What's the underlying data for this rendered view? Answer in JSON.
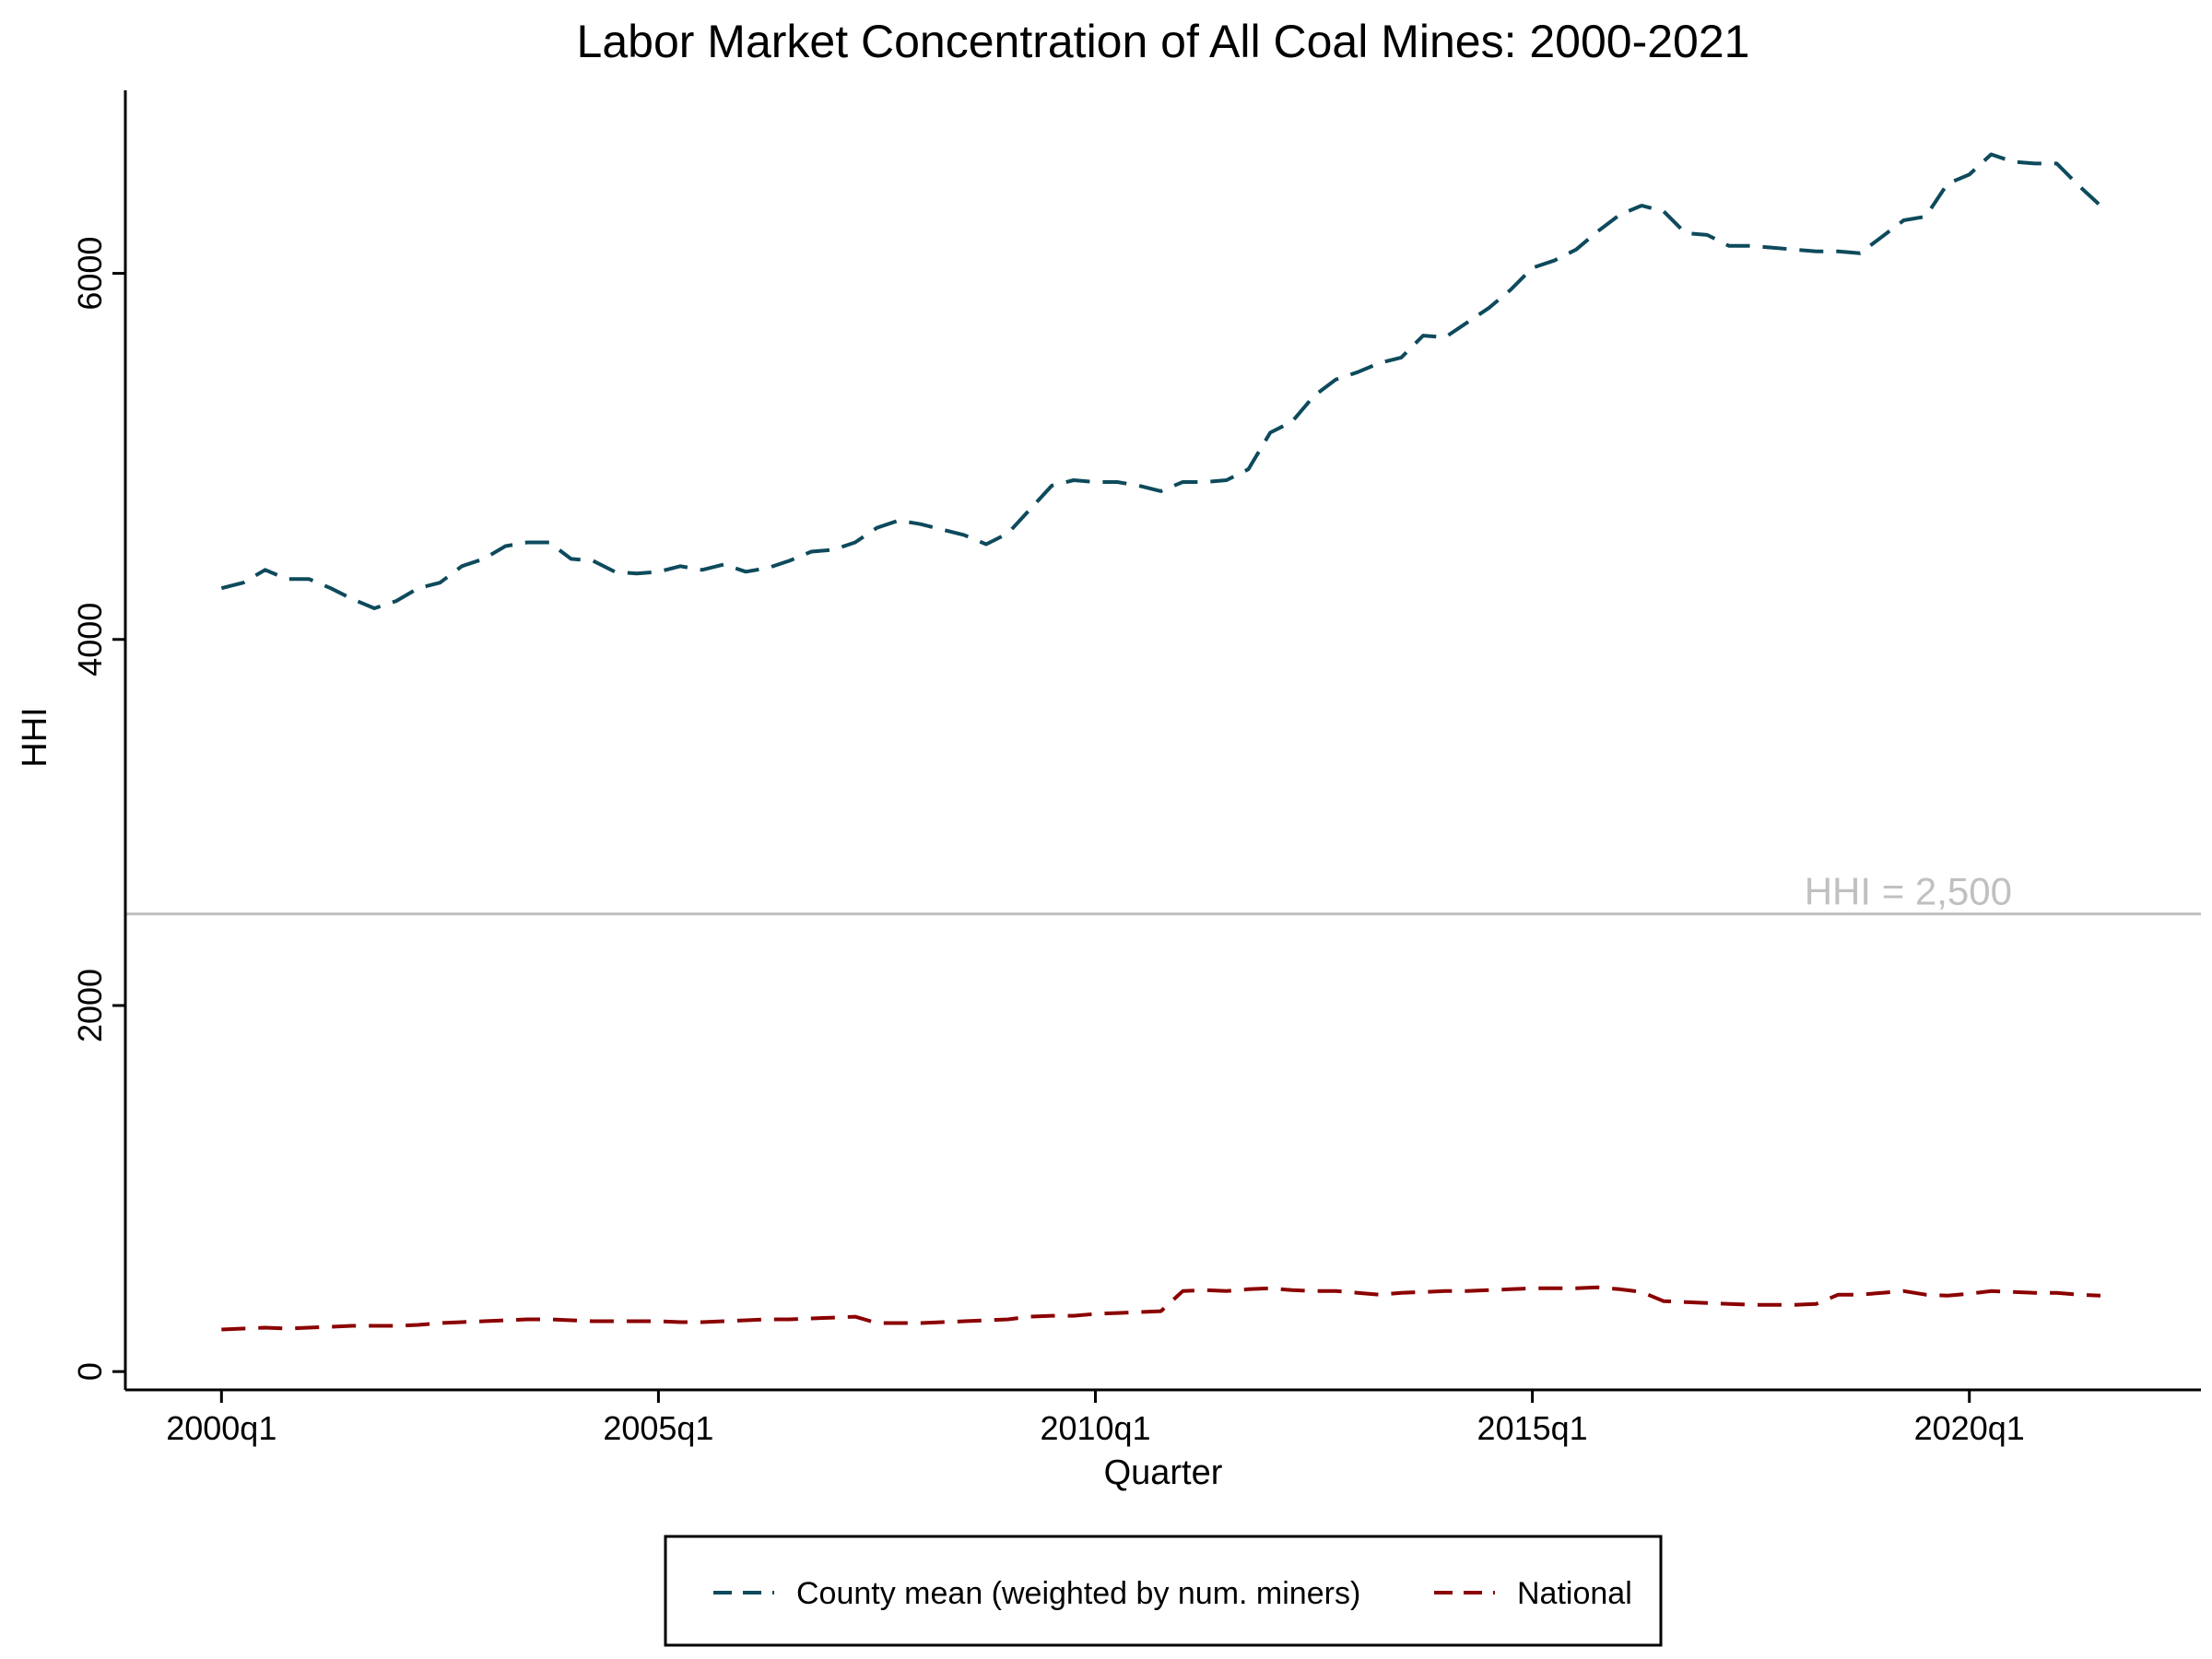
{
  "chart_data": {
    "type": "line",
    "title": "Labor Market Concentration of All Coal Mines: 2000-2021",
    "xlabel": "Quarter",
    "ylabel": "HHI",
    "x_range": [
      2000,
      2021.75
    ],
    "x_ticks": [
      {
        "value": 2000,
        "label": "2000q1"
      },
      {
        "value": 2005,
        "label": "2005q1"
      },
      {
        "value": 2010,
        "label": "2010q1"
      },
      {
        "value": 2015,
        "label": "2015q1"
      },
      {
        "value": 2020,
        "label": "2020q1"
      }
    ],
    "ylim": [
      -100,
      7000
    ],
    "y_ticks": [
      {
        "value": 0,
        "label": "0"
      },
      {
        "value": 2000,
        "label": "2000"
      },
      {
        "value": 4000,
        "label": "4000"
      },
      {
        "value": 6000,
        "label": "6000"
      }
    ],
    "grid": false,
    "legend_position": "bottom",
    "reference_line": {
      "value": 2500,
      "label": "HHI = 2,500",
      "color": "#c0c0c0"
    },
    "series": [
      {
        "name": "County mean (weighted by num. miners)",
        "color": "#0d4a5c",
        "dash": "dashed",
        "points": [
          [
            2000.0,
            4280
          ],
          [
            2000.25,
            4310
          ],
          [
            2000.5,
            4380
          ],
          [
            2000.75,
            4330
          ],
          [
            2001.0,
            4330
          ],
          [
            2001.25,
            4280
          ],
          [
            2001.5,
            4220
          ],
          [
            2001.75,
            4170
          ],
          [
            2002.0,
            4210
          ],
          [
            2002.25,
            4280
          ],
          [
            2002.5,
            4310
          ],
          [
            2002.75,
            4400
          ],
          [
            2003.0,
            4440
          ],
          [
            2003.25,
            4510
          ],
          [
            2003.5,
            4530
          ],
          [
            2003.75,
            4530
          ],
          [
            2004.0,
            4440
          ],
          [
            2004.25,
            4430
          ],
          [
            2004.5,
            4370
          ],
          [
            2004.75,
            4360
          ],
          [
            2005.0,
            4370
          ],
          [
            2005.25,
            4400
          ],
          [
            2005.5,
            4380
          ],
          [
            2005.75,
            4410
          ],
          [
            2006.0,
            4370
          ],
          [
            2006.25,
            4390
          ],
          [
            2006.5,
            4430
          ],
          [
            2006.75,
            4480
          ],
          [
            2007.0,
            4490
          ],
          [
            2007.25,
            4530
          ],
          [
            2007.5,
            4610
          ],
          [
            2007.75,
            4650
          ],
          [
            2008.0,
            4630
          ],
          [
            2008.25,
            4600
          ],
          [
            2008.5,
            4570
          ],
          [
            2008.75,
            4520
          ],
          [
            2009.0,
            4580
          ],
          [
            2009.25,
            4710
          ],
          [
            2009.5,
            4840
          ],
          [
            2009.75,
            4870
          ],
          [
            2010.0,
            4860
          ],
          [
            2010.25,
            4860
          ],
          [
            2010.5,
            4840
          ],
          [
            2010.75,
            4810
          ],
          [
            2011.0,
            4860
          ],
          [
            2011.25,
            4860
          ],
          [
            2011.5,
            4870
          ],
          [
            2011.75,
            4930
          ],
          [
            2012.0,
            5130
          ],
          [
            2012.25,
            5190
          ],
          [
            2012.5,
            5330
          ],
          [
            2012.75,
            5420
          ],
          [
            2013.0,
            5460
          ],
          [
            2013.25,
            5510
          ],
          [
            2013.5,
            5540
          ],
          [
            2013.75,
            5660
          ],
          [
            2014.0,
            5650
          ],
          [
            2014.25,
            5730
          ],
          [
            2014.5,
            5810
          ],
          [
            2014.75,
            5910
          ],
          [
            2015.0,
            6030
          ],
          [
            2015.25,
            6070
          ],
          [
            2015.5,
            6130
          ],
          [
            2015.75,
            6230
          ],
          [
            2016.0,
            6320
          ],
          [
            2016.25,
            6370
          ],
          [
            2016.5,
            6340
          ],
          [
            2016.75,
            6220
          ],
          [
            2017.0,
            6210
          ],
          [
            2017.25,
            6150
          ],
          [
            2017.5,
            6150
          ],
          [
            2017.75,
            6140
          ],
          [
            2018.0,
            6130
          ],
          [
            2018.25,
            6120
          ],
          [
            2018.5,
            6120
          ],
          [
            2018.75,
            6110
          ],
          [
            2019.0,
            6200
          ],
          [
            2019.25,
            6290
          ],
          [
            2019.5,
            6310
          ],
          [
            2019.75,
            6490
          ],
          [
            2020.0,
            6540
          ],
          [
            2020.25,
            6650
          ],
          [
            2020.5,
            6610
          ],
          [
            2020.75,
            6600
          ],
          [
            2021.0,
            6600
          ],
          [
            2021.25,
            6480
          ],
          [
            2021.5,
            6370
          ]
        ]
      },
      {
        "name": "National",
        "color": "#8b0000",
        "dash": "dashed",
        "points": [
          [
            2000.0,
            230
          ],
          [
            2000.25,
            235
          ],
          [
            2000.5,
            240
          ],
          [
            2000.75,
            235
          ],
          [
            2001.0,
            240
          ],
          [
            2001.25,
            245
          ],
          [
            2001.5,
            250
          ],
          [
            2001.75,
            250
          ],
          [
            2002.0,
            250
          ],
          [
            2002.25,
            255
          ],
          [
            2002.5,
            265
          ],
          [
            2002.75,
            270
          ],
          [
            2003.0,
            275
          ],
          [
            2003.25,
            280
          ],
          [
            2003.5,
            285
          ],
          [
            2003.75,
            285
          ],
          [
            2004.0,
            280
          ],
          [
            2004.25,
            275
          ],
          [
            2004.5,
            275
          ],
          [
            2004.75,
            275
          ],
          [
            2005.0,
            275
          ],
          [
            2005.25,
            270
          ],
          [
            2005.5,
            270
          ],
          [
            2005.75,
            275
          ],
          [
            2006.0,
            280
          ],
          [
            2006.25,
            285
          ],
          [
            2006.5,
            285
          ],
          [
            2006.75,
            290
          ],
          [
            2007.0,
            295
          ],
          [
            2007.25,
            300
          ],
          [
            2007.5,
            265
          ],
          [
            2007.75,
            265
          ],
          [
            2008.0,
            265
          ],
          [
            2008.25,
            270
          ],
          [
            2008.5,
            275
          ],
          [
            2008.75,
            280
          ],
          [
            2009.0,
            285
          ],
          [
            2009.25,
            300
          ],
          [
            2009.5,
            305
          ],
          [
            2009.75,
            305
          ],
          [
            2010.0,
            315
          ],
          [
            2010.25,
            320
          ],
          [
            2010.5,
            325
          ],
          [
            2010.75,
            330
          ],
          [
            2011.0,
            440
          ],
          [
            2011.25,
            445
          ],
          [
            2011.5,
            440
          ],
          [
            2011.75,
            450
          ],
          [
            2012.0,
            455
          ],
          [
            2012.25,
            445
          ],
          [
            2012.5,
            440
          ],
          [
            2012.75,
            440
          ],
          [
            2013.0,
            430
          ],
          [
            2013.25,
            420
          ],
          [
            2013.5,
            430
          ],
          [
            2013.75,
            435
          ],
          [
            2014.0,
            440
          ],
          [
            2014.25,
            440
          ],
          [
            2014.5,
            445
          ],
          [
            2014.75,
            450
          ],
          [
            2015.0,
            455
          ],
          [
            2015.25,
            455
          ],
          [
            2015.5,
            455
          ],
          [
            2015.75,
            460
          ],
          [
            2016.0,
            450
          ],
          [
            2016.25,
            435
          ],
          [
            2016.5,
            385
          ],
          [
            2016.75,
            380
          ],
          [
            2017.0,
            375
          ],
          [
            2017.25,
            370
          ],
          [
            2017.5,
            365
          ],
          [
            2017.75,
            365
          ],
          [
            2018.0,
            365
          ],
          [
            2018.25,
            370
          ],
          [
            2018.5,
            420
          ],
          [
            2018.75,
            420
          ],
          [
            2019.0,
            430
          ],
          [
            2019.25,
            440
          ],
          [
            2019.5,
            420
          ],
          [
            2019.75,
            415
          ],
          [
            2020.0,
            425
          ],
          [
            2020.25,
            440
          ],
          [
            2020.5,
            435
          ],
          [
            2020.75,
            430
          ],
          [
            2021.0,
            430
          ],
          [
            2021.25,
            420
          ],
          [
            2021.5,
            415
          ]
        ]
      }
    ]
  }
}
